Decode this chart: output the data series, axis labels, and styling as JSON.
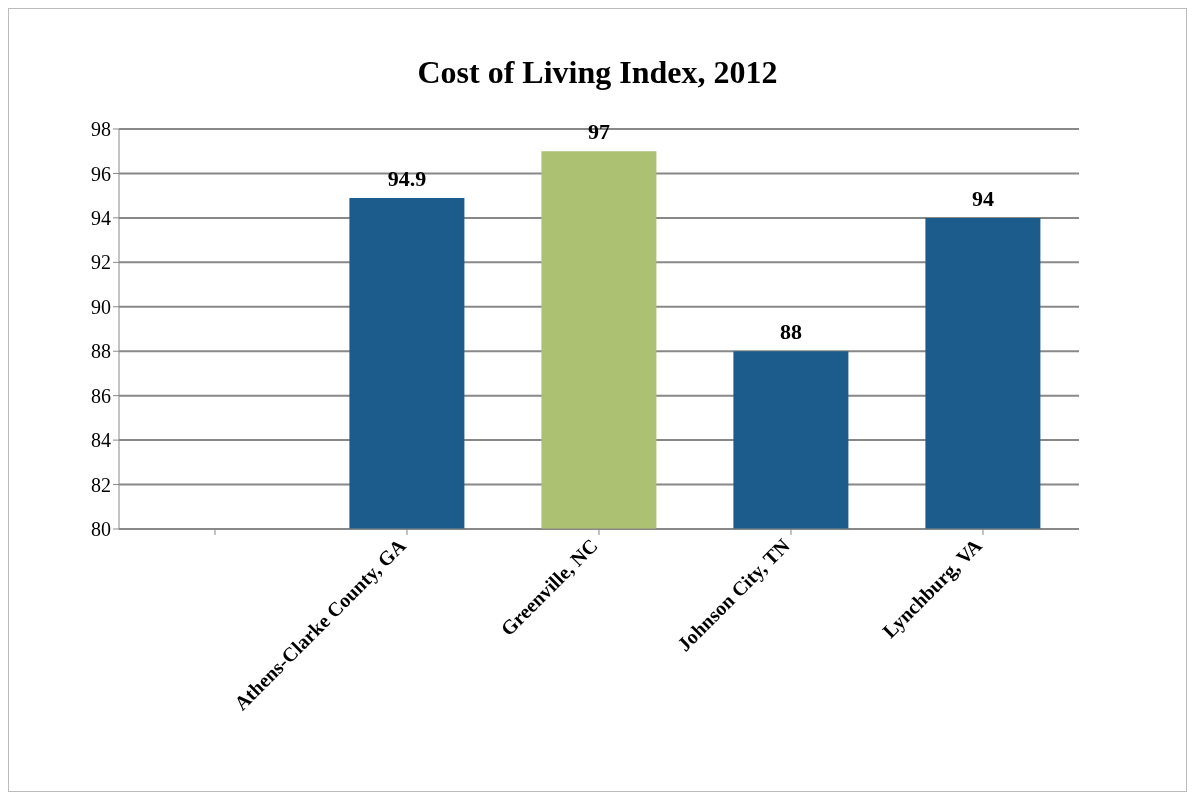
{
  "chart_data": {
    "type": "bar",
    "title": "Cost of Living Index, 2012",
    "categories": [
      null,
      "Athens-Clarke County, GA",
      "Greenville, NC",
      "Johnson City, TN",
      "Lynchburg, VA"
    ],
    "values": [
      null,
      94.9,
      97,
      88,
      94
    ],
    "colors": [
      "#1b5c8c",
      "#1b5c8c",
      "#adc172",
      "#1b5c8c",
      "#1b5c8c"
    ],
    "ylim": [
      80,
      98
    ],
    "yticks": [
      80,
      82,
      84,
      86,
      88,
      90,
      92,
      94,
      96,
      98
    ],
    "grid": "y",
    "data_labels": true
  }
}
